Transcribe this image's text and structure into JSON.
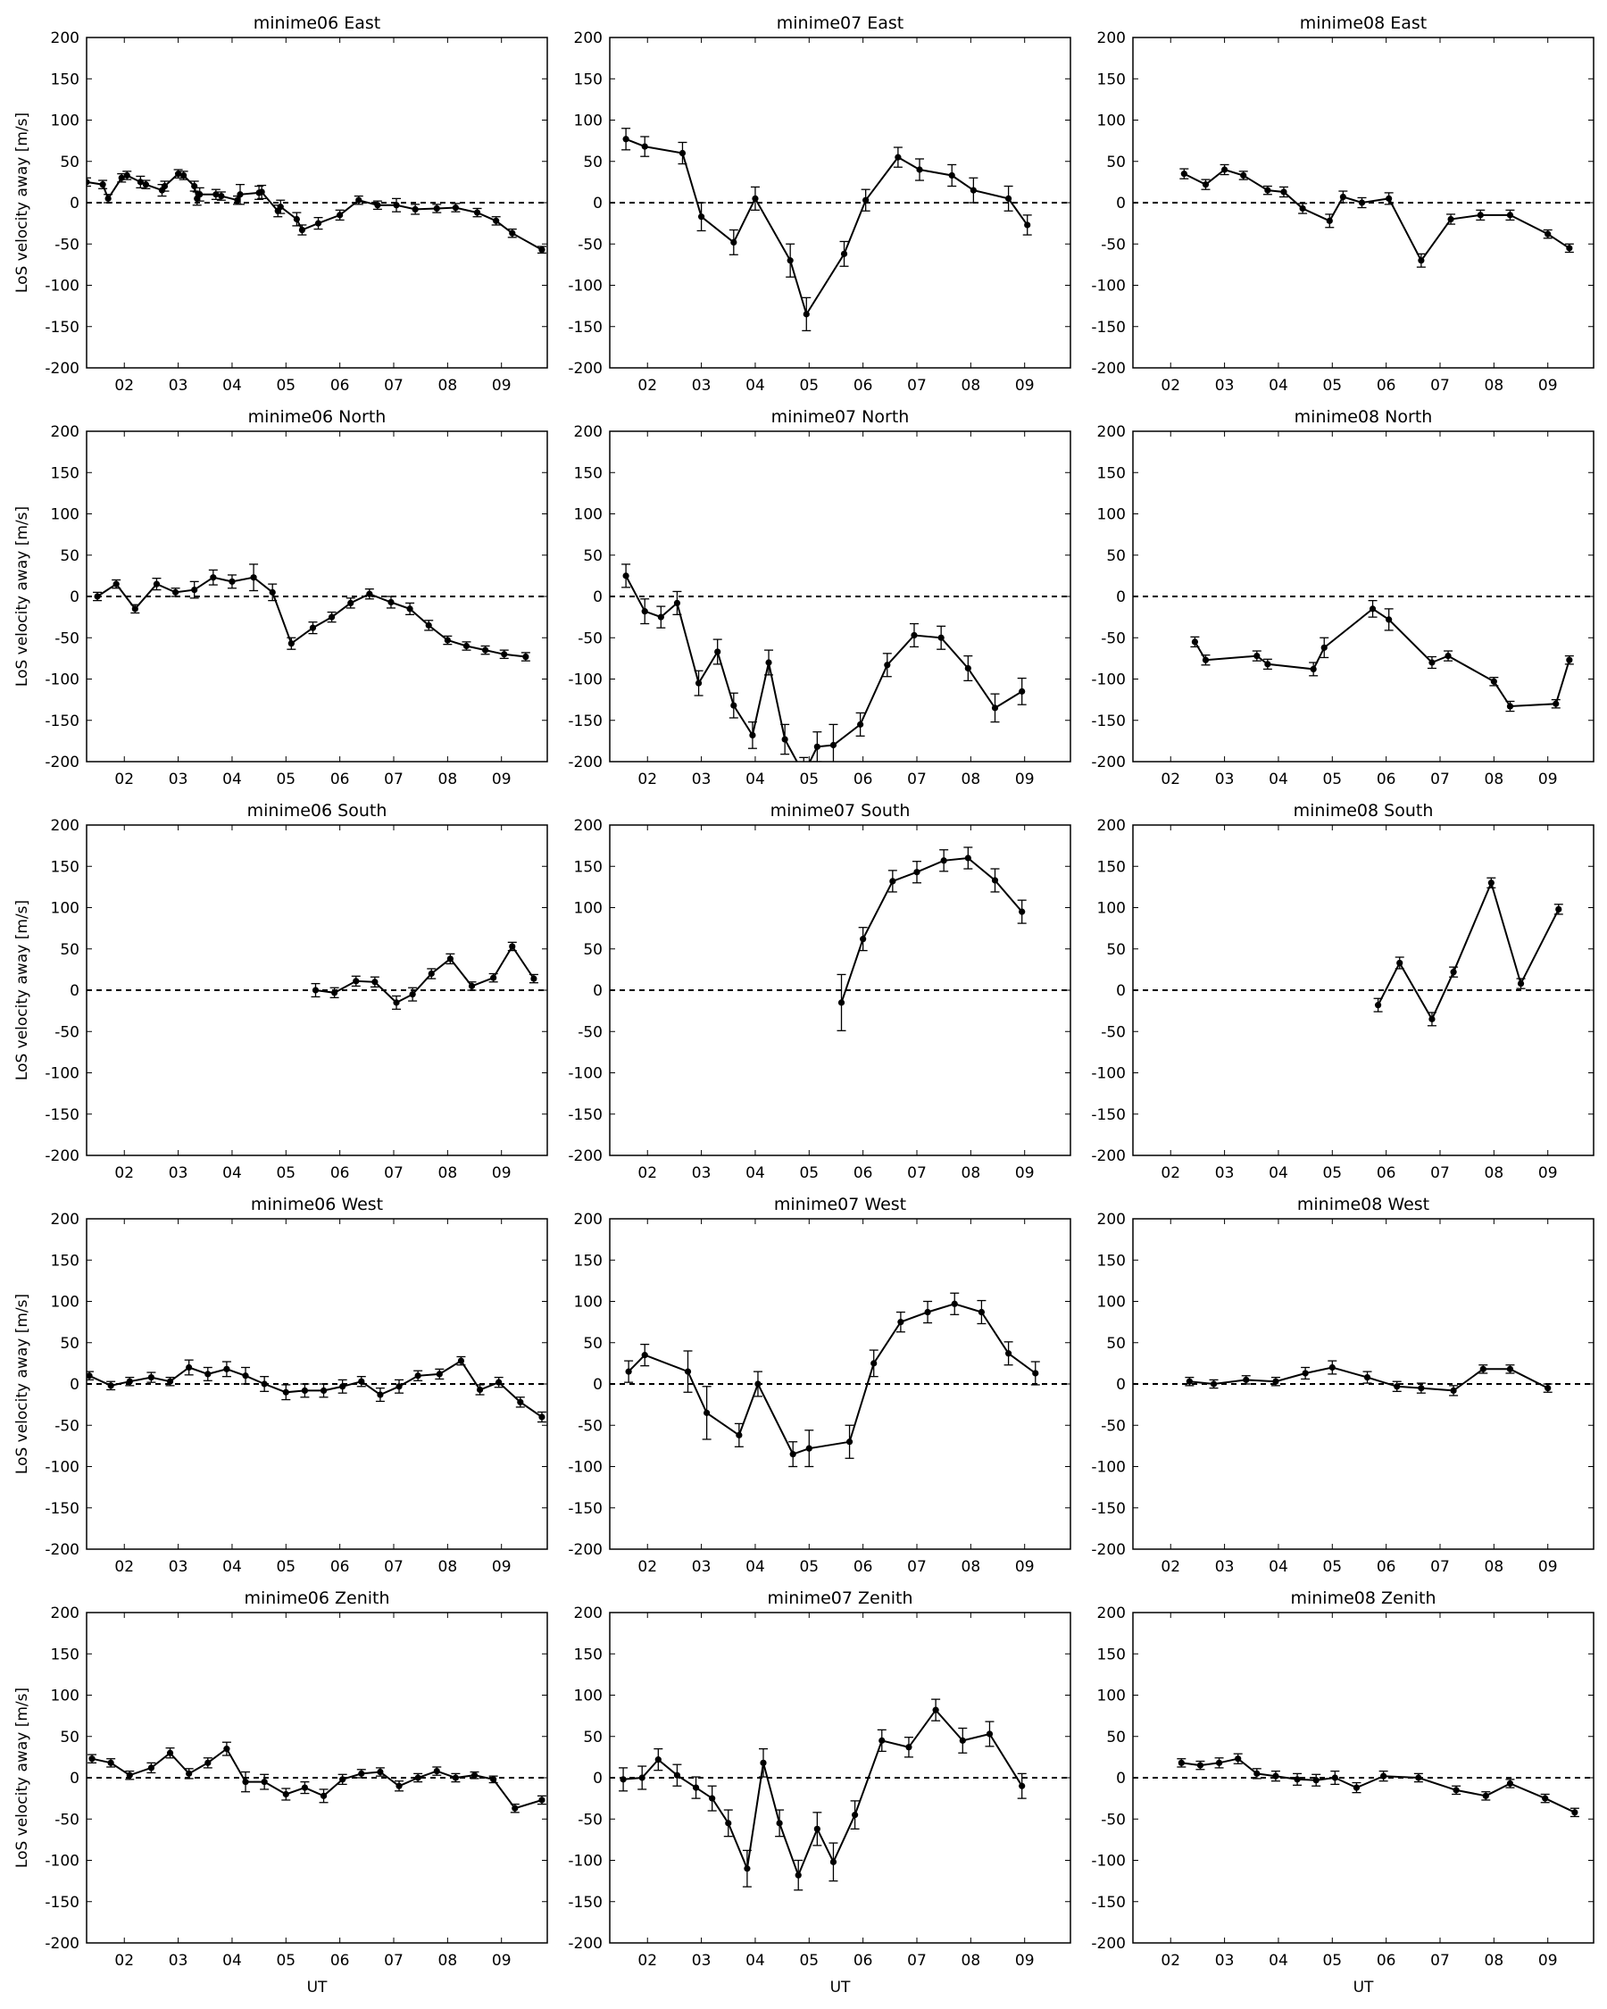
{
  "figure": {
    "xlabel": "UT",
    "ylabel": "LoS velocity away [m/s]"
  },
  "chart_data": [
    {
      "type": "line",
      "title": "minime06 East",
      "xlabel": "",
      "ylabel": "LoS velocity away [m/s]",
      "xlim": [
        1.3,
        9.85
      ],
      "ylim": [
        -200,
        200
      ],
      "xticks": [
        "02",
        "03",
        "04",
        "05",
        "06",
        "07",
        "08",
        "09"
      ],
      "yticks": [
        -200,
        -150,
        -100,
        -50,
        0,
        50,
        100,
        150,
        200
      ],
      "zero_line": "dashed",
      "x": [
        1.3,
        1.6,
        1.7,
        1.95,
        2.05,
        2.3,
        2.4,
        2.7,
        2.75,
        3.0,
        3.1,
        3.3,
        3.35,
        3.4,
        3.7,
        3.8,
        4.1,
        4.15,
        4.5,
        4.55,
        4.85,
        4.9,
        5.2,
        5.3,
        5.6,
        6.0,
        6.35,
        6.7,
        7.05,
        7.4,
        7.8,
        8.15,
        8.55,
        8.9,
        9.2,
        9.75
      ],
      "y": [
        25,
        22,
        5,
        30,
        33,
        25,
        22,
        15,
        20,
        35,
        33,
        20,
        5,
        10,
        10,
        8,
        3,
        10,
        12,
        13,
        -10,
        -5,
        -20,
        -33,
        -25,
        -15,
        3,
        -3,
        -3,
        -8,
        -7,
        -6,
        -12,
        -22,
        -37,
        -57
      ],
      "err": [
        5,
        5,
        5,
        5,
        5,
        7,
        5,
        7,
        6,
        5,
        5,
        6,
        8,
        8,
        6,
        5,
        5,
        12,
        8,
        8,
        7,
        8,
        8,
        6,
        7,
        6,
        5,
        5,
        8,
        6,
        5,
        5,
        5,
        5,
        5,
        4
      ]
    },
    {
      "type": "line",
      "title": "minime07 East",
      "xlabel": "",
      "ylabel": "",
      "xlim": [
        1.3,
        9.85
      ],
      "ylim": [
        -200,
        200
      ],
      "xticks": [
        "02",
        "03",
        "04",
        "05",
        "06",
        "07",
        "08",
        "09"
      ],
      "yticks": [
        -200,
        -150,
        -100,
        -50,
        0,
        50,
        100,
        150,
        200
      ],
      "zero_line": "dashed",
      "x": [
        1.6,
        1.95,
        2.65,
        3.0,
        3.6,
        4.0,
        4.65,
        4.95,
        5.65,
        6.05,
        6.65,
        7.05,
        7.65,
        8.05,
        8.7,
        9.05
      ],
      "y": [
        77,
        68,
        60,
        -17,
        -48,
        5,
        -70,
        -135,
        -62,
        3,
        55,
        40,
        33,
        15,
        5,
        -27
      ],
      "err": [
        13,
        12,
        13,
        17,
        15,
        14,
        20,
        20,
        15,
        13,
        12,
        13,
        13,
        15,
        15,
        12
      ]
    },
    {
      "type": "line",
      "title": "minime08 East",
      "xlabel": "",
      "ylabel": "",
      "xlim": [
        1.3,
        9.85
      ],
      "ylim": [
        -200,
        200
      ],
      "xticks": [
        "02",
        "03",
        "04",
        "05",
        "06",
        "07",
        "08",
        "09"
      ],
      "yticks": [
        -200,
        -150,
        -100,
        -50,
        0,
        50,
        100,
        150,
        200
      ],
      "zero_line": "dashed",
      "x": [
        2.25,
        2.65,
        3.0,
        3.35,
        3.8,
        4.1,
        4.45,
        4.95,
        5.2,
        5.55,
        6.05,
        6.65,
        7.2,
        7.75,
        8.3,
        9.0,
        9.4
      ],
      "y": [
        35,
        22,
        40,
        33,
        15,
        13,
        -7,
        -22,
        7,
        0,
        5,
        -70,
        -20,
        -15,
        -15,
        -38,
        -55
      ],
      "err": [
        6,
        6,
        6,
        5,
        5,
        6,
        6,
        8,
        7,
        6,
        7,
        8,
        6,
        6,
        6,
        5,
        5
      ]
    },
    {
      "type": "line",
      "title": "minime06 North",
      "xlabel": "",
      "ylabel": "LoS velocity away [m/s]",
      "xlim": [
        1.3,
        9.85
      ],
      "ylim": [
        -200,
        200
      ],
      "xticks": [
        "02",
        "03",
        "04",
        "05",
        "06",
        "07",
        "08",
        "09"
      ],
      "yticks": [
        -200,
        -150,
        -100,
        -50,
        0,
        50,
        100,
        150,
        200
      ],
      "zero_line": "dashed",
      "x": [
        1.5,
        1.85,
        2.2,
        2.6,
        2.95,
        3.3,
        3.65,
        4.0,
        4.4,
        4.75,
        5.1,
        5.5,
        5.85,
        6.2,
        6.55,
        6.95,
        7.3,
        7.65,
        8.0,
        8.35,
        8.7,
        9.05,
        9.45
      ],
      "y": [
        0,
        15,
        -15,
        15,
        5,
        8,
        23,
        18,
        23,
        5,
        -57,
        -38,
        -25,
        -8,
        3,
        -7,
        -15,
        -35,
        -53,
        -60,
        -65,
        -70,
        -73
      ],
      "err": [
        5,
        5,
        5,
        7,
        5,
        10,
        9,
        8,
        16,
        10,
        7,
        7,
        6,
        6,
        6,
        7,
        7,
        6,
        5,
        5,
        5,
        5,
        5
      ]
    },
    {
      "type": "line",
      "title": "minime07 North",
      "xlabel": "",
      "ylabel": "",
      "xlim": [
        1.3,
        9.85
      ],
      "ylim": [
        -200,
        200
      ],
      "xticks": [
        "02",
        "03",
        "04",
        "05",
        "06",
        "07",
        "08",
        "09"
      ],
      "yticks": [
        -200,
        -150,
        -100,
        -50,
        0,
        50,
        100,
        150,
        200
      ],
      "zero_line": "dashed",
      "x": [
        1.6,
        1.95,
        2.25,
        2.55,
        2.95,
        3.3,
        3.6,
        3.95,
        4.25,
        4.55,
        4.9,
        5.15,
        5.45,
        5.95,
        6.45,
        6.95,
        7.45,
        7.95,
        8.45,
        8.95
      ],
      "y": [
        25,
        -18,
        -25,
        -8,
        -105,
        -67,
        -132,
        -168,
        -80,
        -173,
        -215,
        -182,
        -180,
        -155,
        -83,
        -47,
        -50,
        -87,
        -135,
        -115
      ],
      "err": [
        14,
        15,
        13,
        14,
        15,
        15,
        15,
        16,
        15,
        18,
        20,
        18,
        25,
        14,
        14,
        14,
        14,
        15,
        17,
        16
      ]
    },
    {
      "type": "line",
      "title": "minime08 North",
      "xlabel": "",
      "ylabel": "",
      "xlim": [
        1.3,
        9.85
      ],
      "ylim": [
        -200,
        200
      ],
      "xticks": [
        "02",
        "03",
        "04",
        "05",
        "06",
        "07",
        "08",
        "09"
      ],
      "yticks": [
        -200,
        -150,
        -100,
        -50,
        0,
        50,
        100,
        150,
        200
      ],
      "zero_line": "dashed",
      "x": [
        2.45,
        2.65,
        3.6,
        3.8,
        4.65,
        4.85,
        5.75,
        6.05,
        6.85,
        7.15,
        8.0,
        8.3,
        9.15,
        9.4
      ],
      "y": [
        -55,
        -77,
        -72,
        -82,
        -88,
        -62,
        -15,
        -28,
        -80,
        -72,
        -103,
        -133,
        -130,
        -77
      ],
      "err": [
        6,
        6,
        6,
        6,
        8,
        12,
        10,
        13,
        7,
        6,
        5,
        6,
        5,
        5
      ]
    },
    {
      "type": "line",
      "title": "minime06 South",
      "xlabel": "",
      "ylabel": "LoS velocity away [m/s]",
      "xlim": [
        1.3,
        9.85
      ],
      "ylim": [
        -200,
        200
      ],
      "xticks": [
        "02",
        "03",
        "04",
        "05",
        "06",
        "07",
        "08",
        "09"
      ],
      "yticks": [
        -200,
        -150,
        -100,
        -50,
        0,
        50,
        100,
        150,
        200
      ],
      "zero_line": "dashed",
      "x": [
        5.55,
        5.9,
        6.3,
        6.65,
        7.05,
        7.35,
        7.7,
        8.05,
        8.45,
        8.85,
        9.2,
        9.6
      ],
      "y": [
        0,
        -3,
        11,
        10,
        -15,
        -5,
        20,
        38,
        5,
        15,
        53,
        14
      ],
      "err": [
        8,
        6,
        6,
        6,
        8,
        8,
        6,
        6,
        5,
        5,
        5,
        5
      ]
    },
    {
      "type": "line",
      "title": "minime07 South",
      "xlabel": "",
      "ylabel": "",
      "xlim": [
        1.3,
        9.85
      ],
      "ylim": [
        -200,
        200
      ],
      "xticks": [
        "02",
        "03",
        "04",
        "05",
        "06",
        "07",
        "08",
        "09"
      ],
      "yticks": [
        -200,
        -150,
        -100,
        -50,
        0,
        50,
        100,
        150,
        200
      ],
      "zero_line": "dashed",
      "x": [
        5.6,
        6.0,
        6.55,
        7.0,
        7.5,
        7.95,
        8.45,
        8.95
      ],
      "y": [
        -15,
        62,
        132,
        143,
        157,
        160,
        133,
        95
      ],
      "err": [
        34,
        14,
        13,
        13,
        13,
        13,
        14,
        14
      ]
    },
    {
      "type": "line",
      "title": "minime08 South",
      "xlabel": "",
      "ylabel": "",
      "xlim": [
        1.3,
        9.85
      ],
      "ylim": [
        -200,
        200
      ],
      "xticks": [
        "02",
        "03",
        "04",
        "05",
        "06",
        "07",
        "08",
        "09"
      ],
      "yticks": [
        -200,
        -150,
        -100,
        -50,
        0,
        50,
        100,
        150,
        200
      ],
      "zero_line": "dashed",
      "x": [
        5.85,
        6.25,
        6.85,
        7.25,
        7.95,
        8.5,
        9.2
      ],
      "y": [
        -18,
        33,
        -35,
        22,
        130,
        8,
        98
      ],
      "err": [
        8,
        7,
        8,
        6,
        6,
        6,
        6
      ]
    },
    {
      "type": "line",
      "title": "minime06 West",
      "xlabel": "",
      "ylabel": "LoS velocity away [m/s]",
      "xlim": [
        1.3,
        9.85
      ],
      "ylim": [
        -200,
        200
      ],
      "xticks": [
        "02",
        "03",
        "04",
        "05",
        "06",
        "07",
        "08",
        "09"
      ],
      "yticks": [
        -200,
        -150,
        -100,
        -50,
        0,
        50,
        100,
        150,
        200
      ],
      "zero_line": "dashed",
      "x": [
        1.35,
        1.75,
        2.1,
        2.5,
        2.85,
        3.2,
        3.55,
        3.9,
        4.25,
        4.6,
        5.0,
        5.35,
        5.7,
        6.05,
        6.4,
        6.75,
        7.1,
        7.45,
        7.85,
        8.25,
        8.6,
        8.95,
        9.35,
        9.75
      ],
      "y": [
        10,
        -2,
        3,
        8,
        3,
        20,
        12,
        18,
        10,
        0,
        -10,
        -8,
        -8,
        -3,
        3,
        -13,
        -3,
        10,
        12,
        28,
        -7,
        2,
        -22,
        -40
      ],
      "err": [
        5,
        5,
        5,
        6,
        5,
        9,
        8,
        9,
        10,
        9,
        9,
        8,
        8,
        8,
        6,
        8,
        8,
        6,
        6,
        5,
        6,
        6,
        6,
        6
      ]
    },
    {
      "type": "line",
      "title": "minime07 West",
      "xlabel": "",
      "ylabel": "",
      "xlim": [
        1.3,
        9.85
      ],
      "ylim": [
        -200,
        200
      ],
      "xticks": [
        "02",
        "03",
        "04",
        "05",
        "06",
        "07",
        "08",
        "09"
      ],
      "yticks": [
        -200,
        -150,
        -100,
        -50,
        0,
        50,
        100,
        150,
        200
      ],
      "zero_line": "dashed",
      "x": [
        1.65,
        1.95,
        2.75,
        3.1,
        3.7,
        4.05,
        4.7,
        5.0,
        5.75,
        6.2,
        6.7,
        7.2,
        7.7,
        8.2,
        8.7,
        9.2
      ],
      "y": [
        15,
        35,
        15,
        -35,
        -62,
        0,
        -85,
        -78,
        -70,
        25,
        75,
        87,
        97,
        87,
        37,
        13
      ],
      "err": [
        13,
        13,
        25,
        32,
        14,
        15,
        15,
        22,
        20,
        16,
        12,
        13,
        13,
        14,
        14,
        14
      ]
    },
    {
      "type": "line",
      "title": "minime08 West",
      "xlabel": "",
      "ylabel": "",
      "xlim": [
        1.3,
        9.85
      ],
      "ylim": [
        -200,
        200
      ],
      "xticks": [
        "02",
        "03",
        "04",
        "05",
        "06",
        "07",
        "08",
        "09"
      ],
      "yticks": [
        -200,
        -150,
        -100,
        -50,
        0,
        50,
        100,
        150,
        200
      ],
      "zero_line": "dashed",
      "x": [
        2.35,
        2.8,
        3.4,
        3.95,
        4.5,
        5.0,
        5.65,
        6.2,
        6.65,
        7.25,
        7.8,
        8.3,
        9.0
      ],
      "y": [
        3,
        0,
        5,
        3,
        13,
        20,
        8,
        -3,
        -5,
        -8,
        18,
        18,
        -5
      ],
      "err": [
        5,
        5,
        5,
        5,
        7,
        8,
        7,
        6,
        6,
        6,
        5,
        5,
        5
      ]
    },
    {
      "type": "line",
      "title": "minime06 Zenith",
      "xlabel": "UT",
      "ylabel": "LoS velocity away [m/s]",
      "xlim": [
        1.3,
        9.85
      ],
      "ylim": [
        -200,
        200
      ],
      "xticks": [
        "02",
        "03",
        "04",
        "05",
        "06",
        "07",
        "08",
        "09"
      ],
      "yticks": [
        -200,
        -150,
        -100,
        -50,
        0,
        50,
        100,
        150,
        200
      ],
      "zero_line": "dashed",
      "x": [
        1.4,
        1.75,
        2.1,
        2.5,
        2.85,
        3.2,
        3.55,
        3.9,
        4.25,
        4.6,
        5.0,
        5.35,
        5.7,
        6.05,
        6.4,
        6.75,
        7.1,
        7.45,
        7.8,
        8.15,
        8.5,
        8.85,
        9.25,
        9.75
      ],
      "y": [
        23,
        18,
        3,
        12,
        30,
        5,
        18,
        35,
        -5,
        -5,
        -20,
        -12,
        -22,
        -2,
        5,
        7,
        -10,
        0,
        8,
        0,
        3,
        -2,
        -37,
        -27
      ],
      "err": [
        5,
        5,
        5,
        6,
        6,
        6,
        6,
        8,
        12,
        9,
        7,
        7,
        8,
        6,
        5,
        5,
        6,
        5,
        5,
        5,
        4,
        4,
        5,
        5
      ]
    },
    {
      "type": "line",
      "title": "minime07 Zenith",
      "xlabel": "UT",
      "ylabel": "",
      "xlim": [
        1.3,
        9.85
      ],
      "ylim": [
        -200,
        200
      ],
      "xticks": [
        "02",
        "03",
        "04",
        "05",
        "06",
        "07",
        "08",
        "09"
      ],
      "yticks": [
        -200,
        -150,
        -100,
        -50,
        0,
        50,
        100,
        150,
        200
      ],
      "zero_line": "dashed",
      "x": [
        1.55,
        1.9,
        2.2,
        2.55,
        2.9,
        3.2,
        3.5,
        3.85,
        4.15,
        4.45,
        4.8,
        5.15,
        5.45,
        5.85,
        6.35,
        6.85,
        7.35,
        7.85,
        8.35,
        8.95
      ],
      "y": [
        -2,
        0,
        22,
        3,
        -12,
        -25,
        -55,
        -110,
        18,
        -55,
        -118,
        -62,
        -102,
        -45,
        45,
        37,
        82,
        45,
        53,
        -10
      ],
      "err": [
        14,
        14,
        13,
        13,
        13,
        15,
        16,
        22,
        17,
        16,
        18,
        20,
        23,
        17,
        13,
        12,
        13,
        15,
        15,
        15
      ]
    },
    {
      "type": "line",
      "title": "minime08 Zenith",
      "xlabel": "UT",
      "ylabel": "",
      "xlim": [
        1.3,
        9.85
      ],
      "ylim": [
        -200,
        200
      ],
      "xticks": [
        "02",
        "03",
        "04",
        "05",
        "06",
        "07",
        "08",
        "09"
      ],
      "yticks": [
        -200,
        -150,
        -100,
        -50,
        0,
        50,
        100,
        150,
        200
      ],
      "zero_line": "dashed",
      "x": [
        2.2,
        2.55,
        2.9,
        3.25,
        3.6,
        3.95,
        4.35,
        4.7,
        5.05,
        5.45,
        5.95,
        6.6,
        7.3,
        7.85,
        8.3,
        8.95,
        9.5
      ],
      "y": [
        18,
        15,
        18,
        23,
        5,
        2,
        -2,
        -3,
        0,
        -12,
        2,
        0,
        -15,
        -22,
        -7,
        -25,
        -42
      ],
      "err": [
        5,
        5,
        6,
        6,
        6,
        6,
        7,
        7,
        8,
        6,
        6,
        5,
        5,
        5,
        5,
        5,
        5
      ]
    }
  ]
}
